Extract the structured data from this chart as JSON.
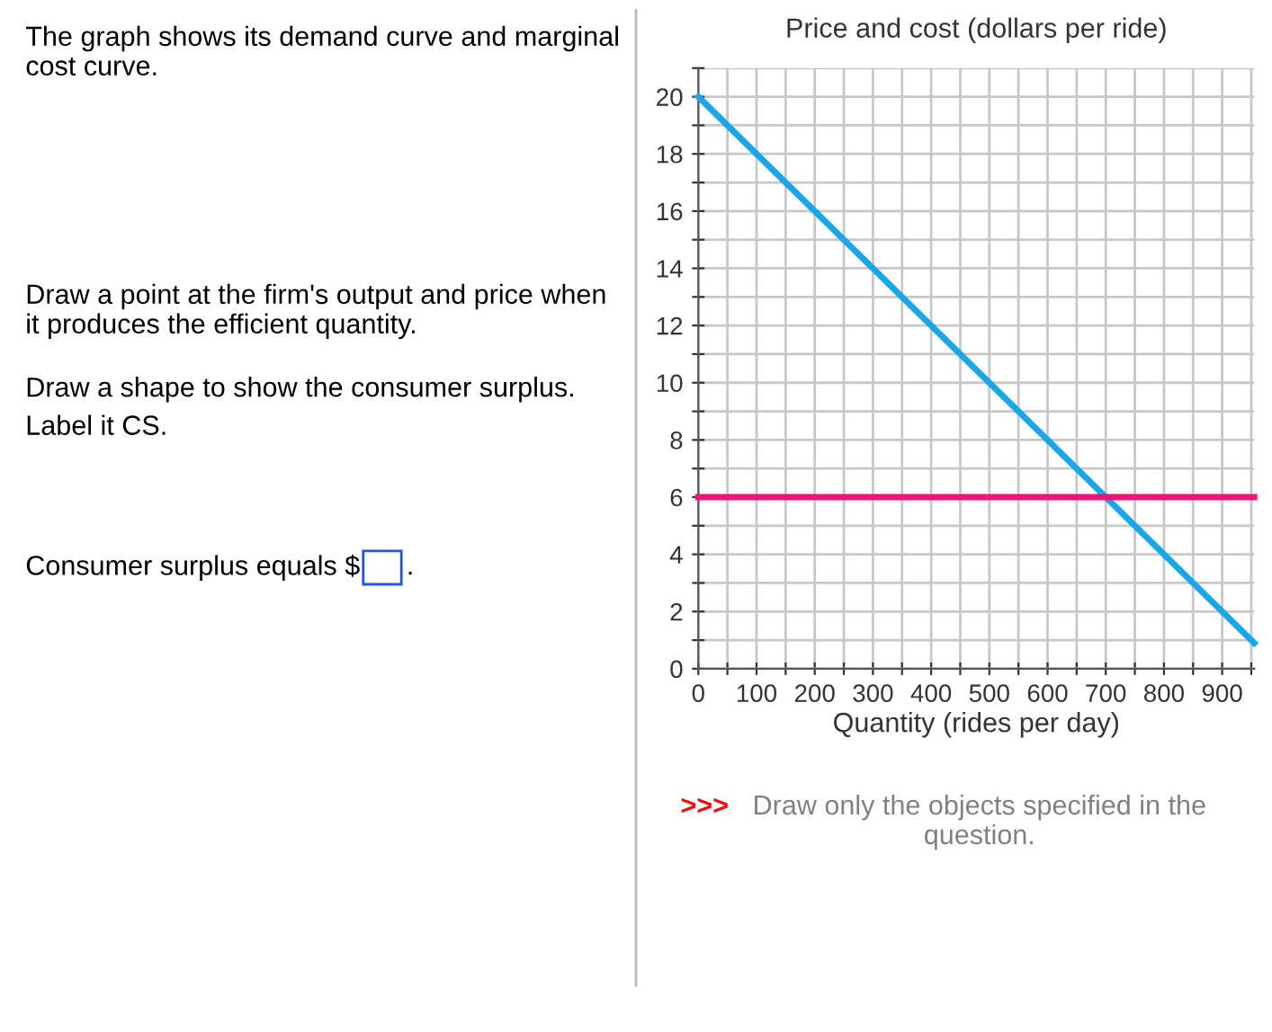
{
  "chart_data": {
    "type": "line",
    "ylabel": "Price and cost (dollars per ride)",
    "xlabel": "Quantity (rides per day)",
    "annotations": [
      "The graph shows its demand curve and marginal cost curve.",
      "Draw a point at the firm's output and price when it produces the efficient quantity.",
      "Draw a shape to show the consumer surplus.",
      "Label it CS.",
      "Consumer surplus equals $",
      ".",
      ">>>",
      "Draw only the objects specified in the question."
    ],
    "x": [
      0,
      955
    ],
    "series": [
      {
        "color": "#1ba6e8",
        "values": [
          20,
          0.9
        ]
      },
      {
        "color": "#e8177a",
        "values": [
          6,
          6
        ]
      }
    ],
    "xlim": [
      0,
      955
    ],
    "ylim": [
      0,
      21
    ],
    "xticks": [
      0,
      {
        "value": 50,
        "label": null
      },
      100,
      {
        "value": 150,
        "label": null
      },
      200,
      {
        "value": 250,
        "label": null
      },
      300,
      {
        "value": 350,
        "label": null
      },
      400,
      {
        "value": 450,
        "label": null
      },
      500,
      {
        "value": 550,
        "label": null
      },
      600,
      {
        "value": 650,
        "label": null
      },
      700,
      {
        "value": 750,
        "label": null
      },
      800,
      {
        "value": 850,
        "label": null
      },
      900,
      {
        "value": 950,
        "label": null
      }
    ],
    "yticks": [
      0,
      {
        "value": 1,
        "label": null
      },
      2,
      {
        "value": 3,
        "label": null
      },
      4,
      {
        "value": 5,
        "label": null
      },
      6,
      {
        "value": 7,
        "label": null
      },
      8,
      {
        "value": 9,
        "label": null
      },
      10,
      {
        "value": 11,
        "label": null
      },
      12,
      {
        "value": 13,
        "label": null
      },
      14,
      {
        "value": 15,
        "label": null
      },
      16,
      {
        "value": 17,
        "label": null
      },
      18,
      {
        "value": 19,
        "label": null
      },
      20,
      {
        "value": 21,
        "label": null
      }
    ],
    "grid": true,
    "marker": "none",
    "line_style": "solid"
  }
}
